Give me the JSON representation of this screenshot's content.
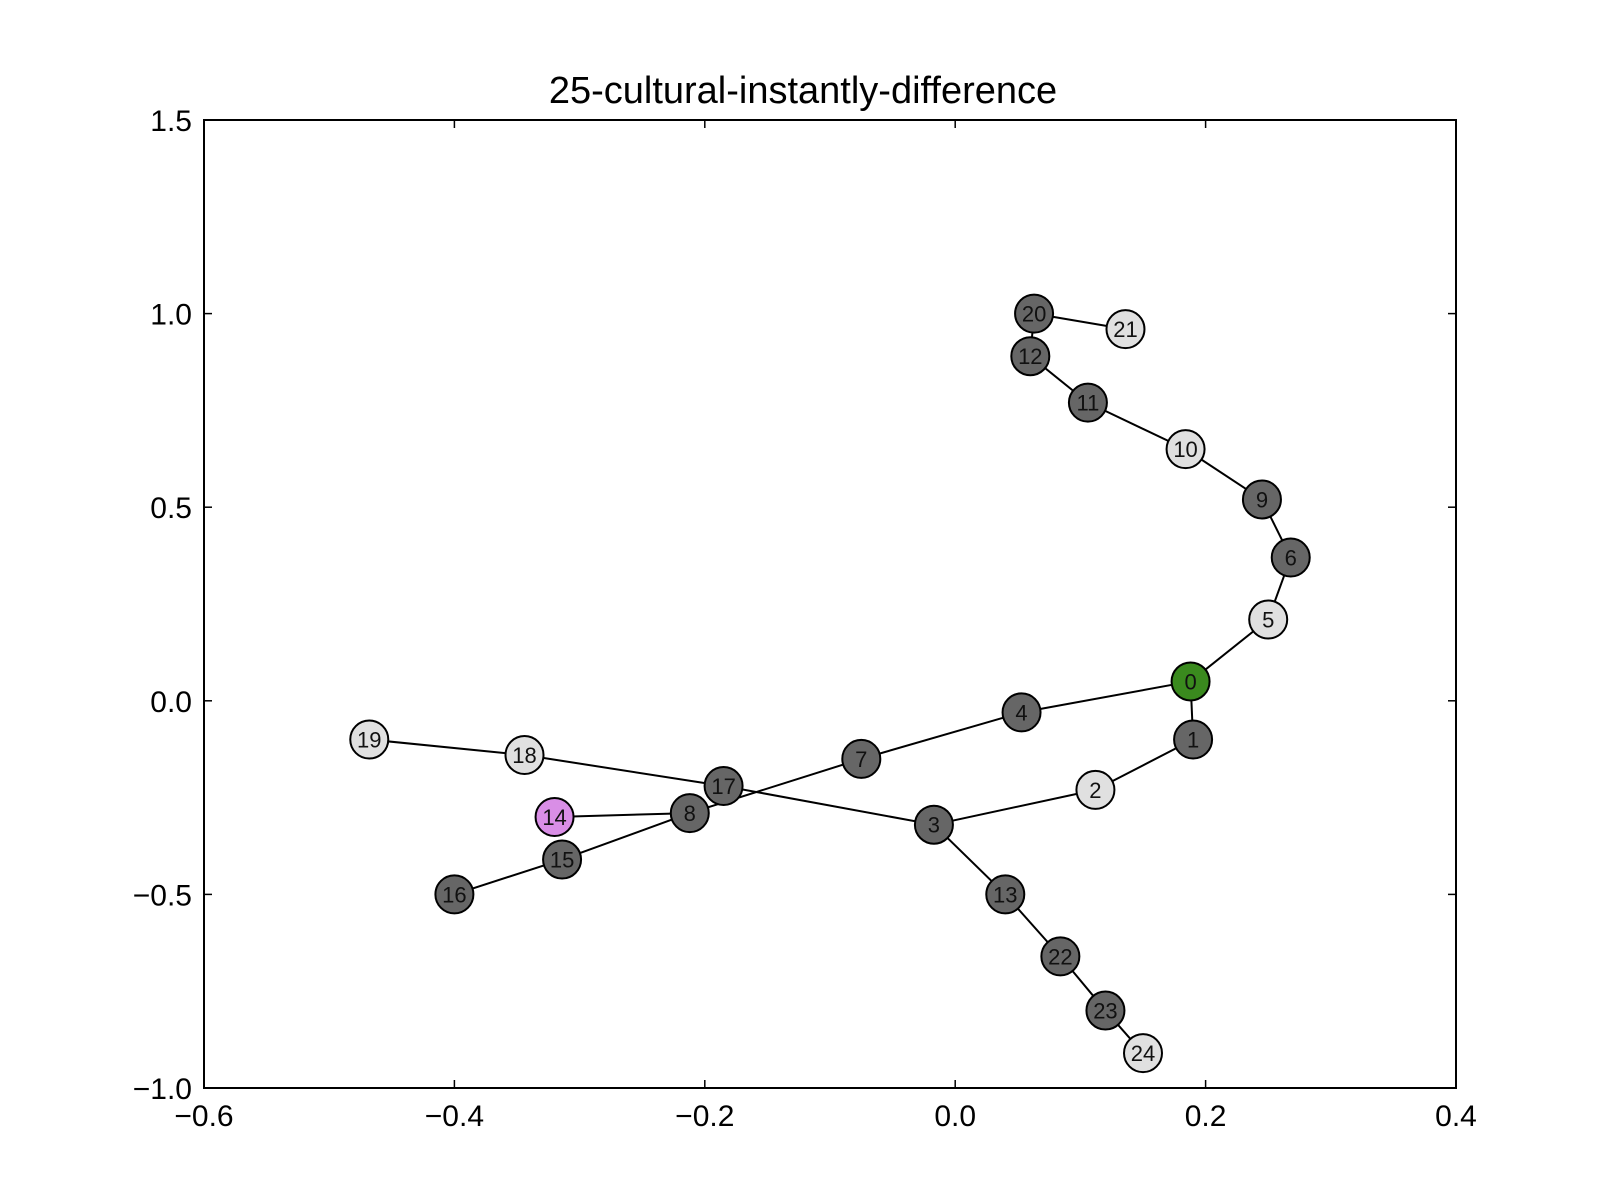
{
  "chart_data": {
    "type": "scatter",
    "title": "25-cultural-instantly-difference",
    "xlabel": "",
    "ylabel": "",
    "xlim": [
      -0.6,
      0.4
    ],
    "ylim": [
      -1.0,
      1.5
    ],
    "x_ticks": [
      -0.6,
      -0.4,
      -0.2,
      0.0,
      0.2,
      0.4
    ],
    "y_ticks": [
      -1.0,
      -0.5,
      0.0,
      0.5,
      1.0,
      1.5
    ],
    "x_tick_labels": [
      "−0.6",
      "−0.4",
      "−0.2",
      "0.0",
      "0.2",
      "0.4"
    ],
    "y_tick_labels": [
      "−1.0",
      "−0.5",
      "0.0",
      "0.5",
      "1.0",
      "1.5"
    ],
    "grid": false,
    "colors": {
      "dark": "#666666",
      "light": "#e0e0e0",
      "root": "#3a8a1e",
      "highlight": "#d98ee6"
    },
    "nodes": [
      {
        "id": "0",
        "x": 0.188,
        "y": 0.05,
        "color": "root"
      },
      {
        "id": "1",
        "x": 0.19,
        "y": -0.1,
        "color": "dark"
      },
      {
        "id": "2",
        "x": 0.112,
        "y": -0.23,
        "color": "light"
      },
      {
        "id": "3",
        "x": -0.017,
        "y": -0.32,
        "color": "dark"
      },
      {
        "id": "4",
        "x": 0.053,
        "y": -0.03,
        "color": "dark"
      },
      {
        "id": "5",
        "x": 0.25,
        "y": 0.21,
        "color": "light"
      },
      {
        "id": "6",
        "x": 0.268,
        "y": 0.37,
        "color": "dark"
      },
      {
        "id": "7",
        "x": -0.075,
        "y": -0.15,
        "color": "dark"
      },
      {
        "id": "8",
        "x": -0.212,
        "y": -0.29,
        "color": "dark"
      },
      {
        "id": "9",
        "x": 0.245,
        "y": 0.52,
        "color": "dark"
      },
      {
        "id": "10",
        "x": 0.184,
        "y": 0.65,
        "color": "light"
      },
      {
        "id": "11",
        "x": 0.106,
        "y": 0.77,
        "color": "dark"
      },
      {
        "id": "12",
        "x": 0.06,
        "y": 0.89,
        "color": "dark"
      },
      {
        "id": "13",
        "x": 0.04,
        "y": -0.5,
        "color": "dark"
      },
      {
        "id": "14",
        "x": -0.32,
        "y": -0.3,
        "color": "highlight"
      },
      {
        "id": "15",
        "x": -0.314,
        "y": -0.41,
        "color": "dark"
      },
      {
        "id": "16",
        "x": -0.4,
        "y": -0.5,
        "color": "dark"
      },
      {
        "id": "17",
        "x": -0.185,
        "y": -0.22,
        "color": "dark"
      },
      {
        "id": "18",
        "x": -0.344,
        "y": -0.14,
        "color": "light"
      },
      {
        "id": "19",
        "x": -0.468,
        "y": -0.1,
        "color": "light"
      },
      {
        "id": "20",
        "x": 0.063,
        "y": 1.0,
        "color": "dark"
      },
      {
        "id": "21",
        "x": 0.136,
        "y": 0.96,
        "color": "light"
      },
      {
        "id": "22",
        "x": 0.084,
        "y": -0.66,
        "color": "dark"
      },
      {
        "id": "23",
        "x": 0.12,
        "y": -0.8,
        "color": "dark"
      },
      {
        "id": "24",
        "x": 0.15,
        "y": -0.91,
        "color": "light"
      }
    ],
    "edges": [
      [
        "0",
        "1"
      ],
      [
        "0",
        "4"
      ],
      [
        "0",
        "5"
      ],
      [
        "1",
        "2"
      ],
      [
        "2",
        "3"
      ],
      [
        "3",
        "13"
      ],
      [
        "3",
        "17"
      ],
      [
        "13",
        "22"
      ],
      [
        "22",
        "23"
      ],
      [
        "23",
        "24"
      ],
      [
        "17",
        "18"
      ],
      [
        "18",
        "19"
      ],
      [
        "4",
        "7"
      ],
      [
        "7",
        "8"
      ],
      [
        "8",
        "14"
      ],
      [
        "8",
        "15"
      ],
      [
        "15",
        "16"
      ],
      [
        "5",
        "6"
      ],
      [
        "6",
        "9"
      ],
      [
        "9",
        "10"
      ],
      [
        "10",
        "11"
      ],
      [
        "11",
        "12"
      ],
      [
        "12",
        "20"
      ],
      [
        "20",
        "21"
      ]
    ]
  }
}
